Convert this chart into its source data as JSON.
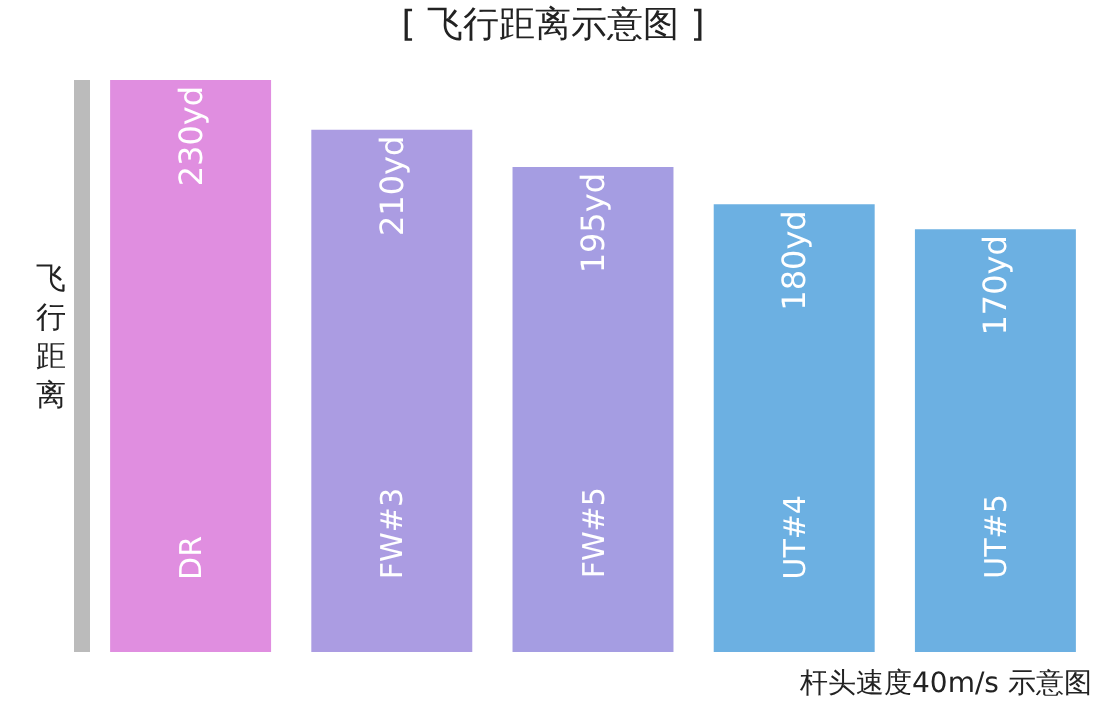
{
  "chart_data": {
    "type": "bar",
    "title": "[ 飞行距离示意图 ]",
    "ylabel": "飞行距离",
    "categories": [
      "DR",
      "FW#3",
      "FW#5",
      "UT#4",
      "UT#5"
    ],
    "values": [
      230,
      210,
      195,
      180,
      170
    ],
    "value_labels": [
      "230yd",
      "210yd",
      "195yd",
      "180yd",
      "170yd"
    ],
    "colors": [
      "#e08ee0",
      "#ab9ce2",
      "#a59de2",
      "#6cb0e2",
      "#6cb0e2"
    ],
    "tick_labels": false,
    "legend": false,
    "annotations": [
      "杆头速度40m/s 示意图"
    ]
  }
}
